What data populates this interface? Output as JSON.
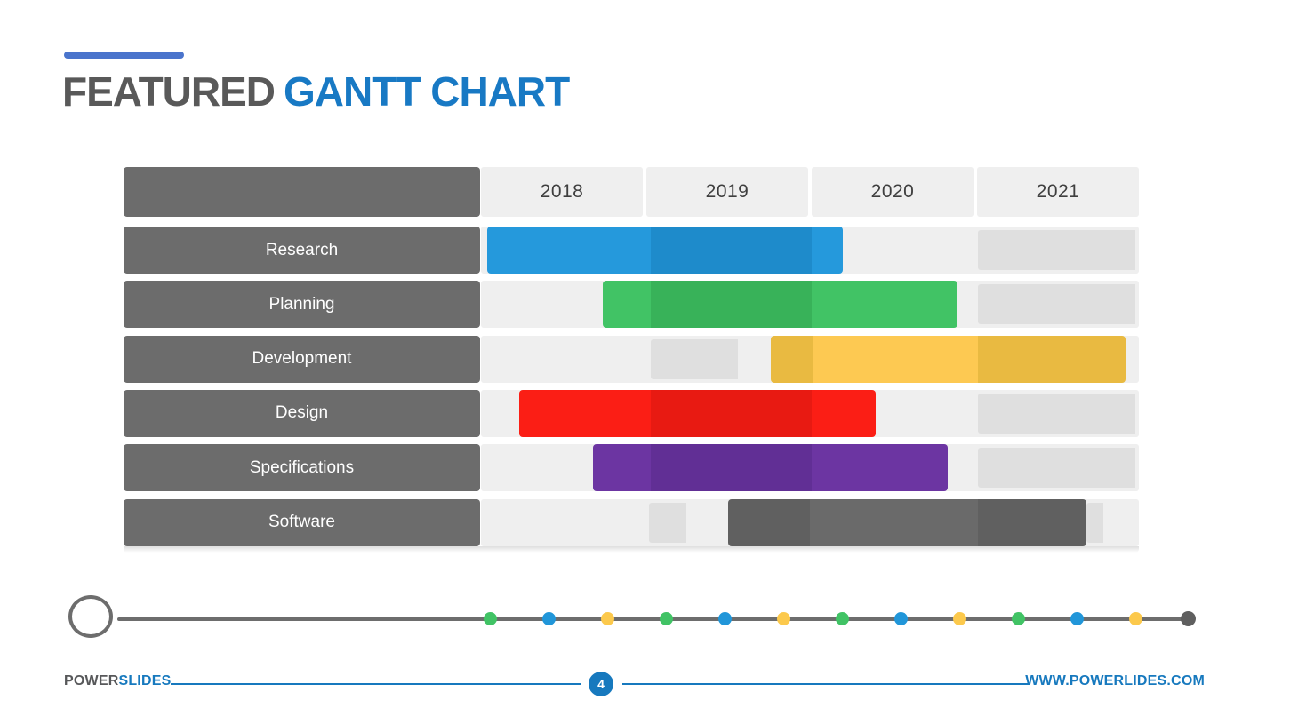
{
  "colors": {
    "accent_line": "#4a74cc",
    "title_gray": "#595959",
    "title_blue": "#1879c4",
    "footer_blue": "#1779be",
    "footer_gray": "#57585a",
    "timeline": "#6d6d6d",
    "row_bg": "#efefef",
    "label_bg": "#6c6c6c"
  },
  "header": {
    "title_gray": "FEATURED",
    "title_blue": "GANTT CHART"
  },
  "chart_data": {
    "type": "gantt",
    "title": "Featured Gantt Chart",
    "columns": [
      "2018",
      "2019",
      "2020",
      "2021"
    ],
    "axis_range": [
      2018,
      2022
    ],
    "placeholder_color": "#dfdfdf",
    "tasks": [
      {
        "label": "Research",
        "bars": [
          {
            "placeholder": false,
            "segments": [
              {
                "from": 2018.04,
                "to": 2019.03,
                "color": "#2599dc"
              },
              {
                "from": 2019.03,
                "to": 2020.01,
                "color": "#1e8bcb"
              },
              {
                "from": 2020.01,
                "to": 2020.2,
                "color": "#2599dc"
              }
            ]
          },
          {
            "placeholder": true,
            "segments": [
              {
                "from": 2021.02,
                "to": 2022.0,
                "color": "#dfdfdf"
              }
            ]
          }
        ]
      },
      {
        "label": "Planning",
        "bars": [
          {
            "placeholder": false,
            "segments": [
              {
                "from": 2018.74,
                "to": 2019.03,
                "color": "#41c365"
              },
              {
                "from": 2019.03,
                "to": 2020.01,
                "color": "#38b259"
              },
              {
                "from": 2020.01,
                "to": 2020.9,
                "color": "#41c365"
              }
            ]
          },
          {
            "placeholder": true,
            "segments": [
              {
                "from": 2021.02,
                "to": 2022.0,
                "color": "#dfdfdf"
              }
            ]
          }
        ]
      },
      {
        "label": "Development",
        "bars": [
          {
            "placeholder": true,
            "segments": [
              {
                "from": 2019.03,
                "to": 2019.76,
                "color": "#dfdfdf"
              }
            ]
          },
          {
            "placeholder": false,
            "segments": [
              {
                "from": 2019.76,
                "to": 2020.02,
                "color": "#e9ba41"
              },
              {
                "from": 2020.02,
                "to": 2021.02,
                "color": "#fdc952"
              },
              {
                "from": 2021.02,
                "to": 2021.92,
                "color": "#e9ba41"
              }
            ]
          }
        ]
      },
      {
        "label": "Design",
        "bars": [
          {
            "placeholder": false,
            "segments": [
              {
                "from": 2018.23,
                "to": 2019.03,
                "color": "#fb1e15"
              },
              {
                "from": 2019.03,
                "to": 2020.01,
                "color": "#e81a12"
              },
              {
                "from": 2020.01,
                "to": 2020.4,
                "color": "#fb1e15"
              }
            ]
          },
          {
            "placeholder": true,
            "segments": [
              {
                "from": 2021.02,
                "to": 2022.0,
                "color": "#dfdfdf"
              }
            ]
          }
        ]
      },
      {
        "label": "Specifications",
        "bars": [
          {
            "placeholder": false,
            "segments": [
              {
                "from": 2018.68,
                "to": 2019.03,
                "color": "#6c35a2"
              },
              {
                "from": 2019.03,
                "to": 2020.01,
                "color": "#612f95"
              },
              {
                "from": 2020.01,
                "to": 2020.84,
                "color": "#6c35a2"
              }
            ]
          },
          {
            "placeholder": true,
            "segments": [
              {
                "from": 2021.02,
                "to": 2022.0,
                "color": "#dfdfdf"
              }
            ]
          }
        ]
      },
      {
        "label": "Software",
        "bars": [
          {
            "placeholder": true,
            "segments": [
              {
                "from": 2019.02,
                "to": 2019.5,
                "color": "#dfdfdf"
              }
            ]
          },
          {
            "placeholder": false,
            "segments": [
              {
                "from": 2019.5,
                "to": 2020.0,
                "color": "#606060"
              },
              {
                "from": 2020.0,
                "to": 2021.02,
                "color": "#6a6a6a"
              },
              {
                "from": 2021.02,
                "to": 2021.68,
                "color": "#606060"
              }
            ]
          },
          {
            "placeholder": true,
            "segments": [
              {
                "from": 2021.68,
                "to": 2022.0,
                "color": "#dfdfdf"
              }
            ]
          }
        ]
      }
    ]
  },
  "timeline": {
    "dot_colors": [
      "#41c365",
      "#2196d9",
      "#fcc94c",
      "#41c365",
      "#2196d9",
      "#fcc94c",
      "#41c365",
      "#2196d9",
      "#fcc94c",
      "#41c365",
      "#2196d9",
      "#fcc94c"
    ],
    "end_dot_color": "#5f5f5f"
  },
  "footer": {
    "brand_gray": "POWER",
    "brand_blue": "SLIDES",
    "page_number": "4",
    "url": "WWW.POWERLIDES.COM"
  }
}
